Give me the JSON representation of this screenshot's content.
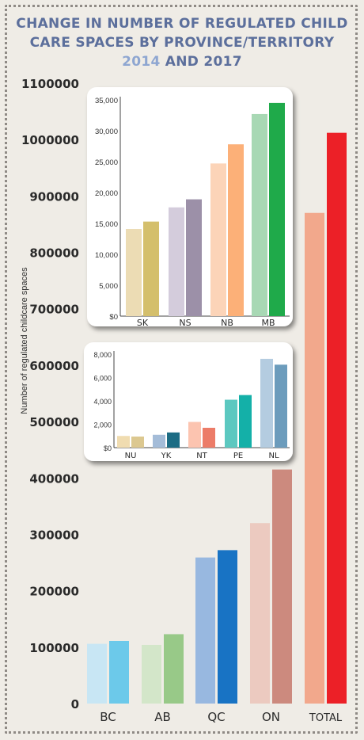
{
  "title": {
    "line1": "CHANGE IN NUMBER OF  REGULATED CHILD",
    "line2": "CARE SPACES BY PROVINCE/TERRITORY",
    "years": "2014",
    "and": " AND 2017"
  },
  "chart_data": [
    {
      "type": "bar",
      "ylabel": "Number of regulated childcare spaces",
      "ylim": [
        0,
        1100000
      ],
      "yticks": [
        "0",
        "100000",
        "200000",
        "300000",
        "400000",
        "500000",
        "600000",
        "700000",
        "800000",
        "900000",
        "1000000",
        "1100000"
      ],
      "categories": [
        "BC",
        "AB",
        "QC",
        "ON",
        "TOTAL"
      ],
      "series": [
        {
          "values": [
            106000,
            104000,
            259000,
            320000,
            870000
          ],
          "colors": [
            "#c8e6f4",
            "#d3e6c9",
            "#98b8e0",
            "#eccac0",
            "#f2a88c"
          ]
        },
        {
          "values": [
            111000,
            123000,
            272000,
            415000,
            1012000
          ],
          "colors": [
            "#6cc9ea",
            "#98c988",
            "#1873c4",
            "#cc8a7e",
            "#ec2027"
          ]
        }
      ]
    },
    {
      "type": "bar",
      "ylim": [
        0,
        35000
      ],
      "yticks": [
        "$0",
        "5,000",
        "10,000",
        "15,000",
        "20,000",
        "25,000",
        "30,000",
        "35,000"
      ],
      "categories": [
        "SK",
        "NS",
        "NB",
        "MB"
      ],
      "series": [
        {
          "values": [
            14100,
            17600,
            24700,
            32700
          ],
          "colors": [
            "#ecdcb4",
            "#d4ccdc",
            "#fcd4b8",
            "#a8d8b4"
          ]
        },
        {
          "values": [
            15300,
            18900,
            27800,
            34500
          ],
          "colors": [
            "#d4bf6c",
            "#9c90a8",
            "#fcb078",
            "#1faa4a"
          ]
        }
      ]
    },
    {
      "type": "bar",
      "ylim": [
        0,
        8000
      ],
      "yticks": [
        "$0",
        "2,000",
        "4,000",
        "6,000",
        "8,000"
      ],
      "categories": [
        "NU",
        "YK",
        "NT",
        "PE",
        "NL"
      ],
      "series": [
        {
          "values": [
            1000,
            1100,
            2200,
            4100,
            7600
          ],
          "colors": [
            "#f0dcb0",
            "#a4bcd8",
            "#fcc4b0",
            "#5cc8c0",
            "#b4cce0"
          ]
        },
        {
          "values": [
            950,
            1300,
            1700,
            4500,
            7100
          ],
          "colors": [
            "#dcc890",
            "#1c6c84",
            "#ec7c68",
            "#14b0a8",
            "#6c9cbc"
          ]
        }
      ]
    }
  ]
}
